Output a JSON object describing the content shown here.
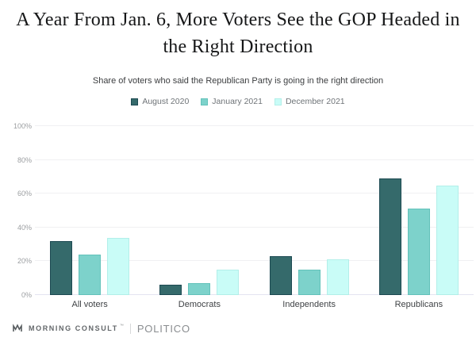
{
  "title": "A Year From Jan. 6, More Voters See the GOP Headed in the Right Direction",
  "subtitle": "Share of voters who said the Republican Party is going in the right direction",
  "colors": {
    "series_fill": [
      "#356a6b",
      "#7dd2cb",
      "#c9fcf7"
    ],
    "series_border": [
      "#1d4a52",
      "#63c2ba",
      "#b2efe9"
    ],
    "gridline": "#f0f0f2",
    "baseline": "#e4e4f0"
  },
  "chart_data": {
    "type": "bar",
    "title": "A Year From Jan. 6, More Voters See the GOP Headed in the Right Direction",
    "subtitle": "Share of voters who said the Republican Party is going in the right direction",
    "categories": [
      "All voters",
      "Democrats",
      "Independents",
      "Republicans"
    ],
    "series": [
      {
        "name": "August 2020",
        "values": [
          32,
          6,
          23,
          69
        ]
      },
      {
        "name": "January 2021",
        "values": [
          24,
          7,
          15,
          51
        ]
      },
      {
        "name": "December 2021",
        "values": [
          34,
          15,
          21,
          65
        ]
      }
    ],
    "xlabel": "",
    "ylabel": "",
    "ylim": [
      0,
      100
    ],
    "yticks": [
      "0%",
      "20%",
      "40%",
      "60%",
      "80%",
      "100%"
    ],
    "grid": true,
    "legend_position": "top"
  },
  "footer": {
    "brand": "MORNING CONSULT",
    "trademark": "™",
    "divider": "",
    "partner": "POLITICO"
  }
}
